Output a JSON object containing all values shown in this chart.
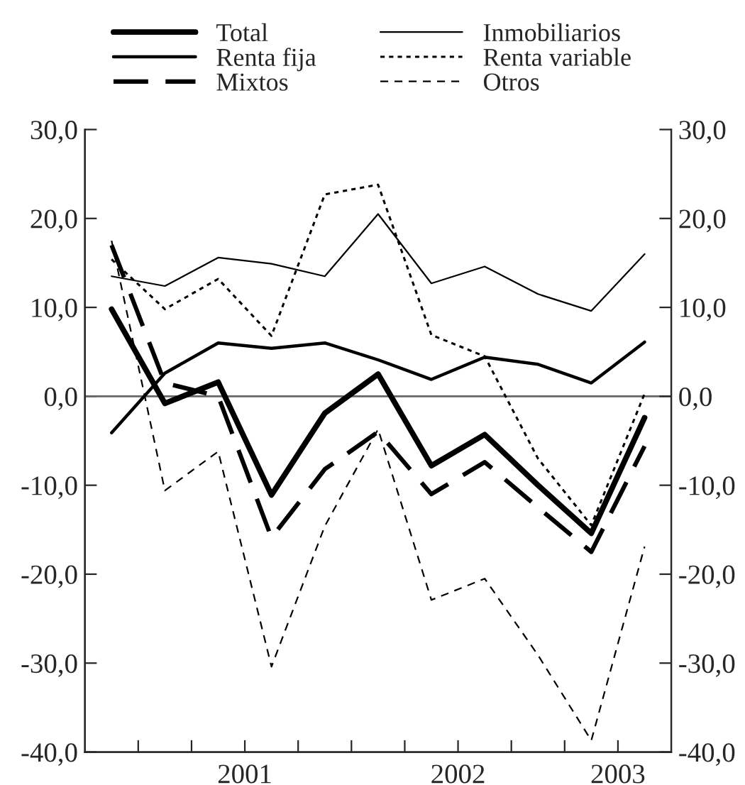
{
  "chart_data": {
    "type": "line",
    "x": [
      2000.875,
      2001.125,
      2001.375,
      2001.625,
      2001.875,
      2002.125,
      2002.375,
      2002.625,
      2002.875,
      2003.125,
      2003.375
    ],
    "series": [
      {
        "name": "Total",
        "color": "#000000",
        "line_style": "solid",
        "values": [
          9.8,
          -0.8,
          1.6,
          -11.1,
          -1.9,
          2.5,
          -7.8,
          -4.3,
          -10.0,
          -15.4,
          -2.4
        ]
      },
      {
        "name": "Renta fija",
        "color": "#000000",
        "line_style": "solid",
        "values": [
          -4.1,
          2.6,
          6.0,
          5.4,
          6.0,
          4.1,
          1.9,
          4.4,
          3.6,
          1.5,
          6.1
        ]
      },
      {
        "name": "Mixtos",
        "color": "#000000",
        "line_style": "dashed",
        "values": [
          17.0,
          1.5,
          0.0,
          -15.9,
          -8.2,
          -4.0,
          -11.0,
          -7.4,
          -12.5,
          -17.5,
          -5.6
        ]
      },
      {
        "name": "Inmobiliarios",
        "color": "#000000",
        "line_style": "solid",
        "values": [
          13.5,
          12.4,
          15.6,
          14.9,
          13.5,
          20.5,
          12.7,
          14.6,
          11.5,
          9.6,
          16.0
        ]
      },
      {
        "name": "Renta variable",
        "color": "#000000",
        "line_style": "dotted",
        "values": [
          15.4,
          9.8,
          13.2,
          6.8,
          22.7,
          23.8,
          6.9,
          4.5,
          -7.0,
          -14.5,
          0.3
        ]
      },
      {
        "name": "Otros",
        "color": "#000000",
        "line_style": "dashed",
        "values": [
          17.5,
          -10.6,
          -6.2,
          -30.4,
          -14.6,
          -3.7,
          -22.9,
          -20.5,
          -29.1,
          -38.7,
          -16.9
        ]
      }
    ],
    "xlim": [
      2000.75,
      2003.5
    ],
    "xticks": [
      {
        "value": 2001,
        "label": null
      },
      {
        "value": 2001.25,
        "label": null
      },
      {
        "value": 2001.5,
        "label": "2001"
      },
      {
        "value": 2001.75,
        "label": null
      },
      {
        "value": 2002,
        "label": null
      },
      {
        "value": 2002.25,
        "label": null
      },
      {
        "value": 2002.5,
        "label": "2002"
      },
      {
        "value": 2002.75,
        "label": null
      },
      {
        "value": 2003,
        "label": null
      },
      {
        "value": 2003.25,
        "label": "2003"
      }
    ],
    "ylim": [
      -40,
      30
    ],
    "yticks": [
      {
        "value": -40,
        "label": "-40,0"
      },
      {
        "value": -30,
        "label": "-30,0"
      },
      {
        "value": -20,
        "label": "-20,0"
      },
      {
        "value": -10,
        "label": "-10,0"
      },
      {
        "value": 0,
        "label": "0,0"
      },
      {
        "value": 10,
        "label": "10,0"
      },
      {
        "value": 20,
        "label": "20,0"
      },
      {
        "value": 30,
        "label": "30,0"
      }
    ],
    "y2lim": [
      -40,
      30
    ],
    "y2ticks": [
      {
        "value": -40,
        "label": "-40,0"
      },
      {
        "value": -30,
        "label": "-30,0"
      },
      {
        "value": -20,
        "label": "-20,0"
      },
      {
        "value": -10,
        "label": "-10,0"
      },
      {
        "value": 0,
        "label": "0,0"
      },
      {
        "value": 10,
        "label": "10,0"
      },
      {
        "value": 20,
        "label": "20,0"
      },
      {
        "value": 30,
        "label": "30,0"
      }
    ],
    "ref_lines": [
      {
        "axis": "y",
        "value": 0,
        "color": "#666666",
        "line_style": "solid"
      }
    ],
    "legend": "top",
    "grid": false
  }
}
